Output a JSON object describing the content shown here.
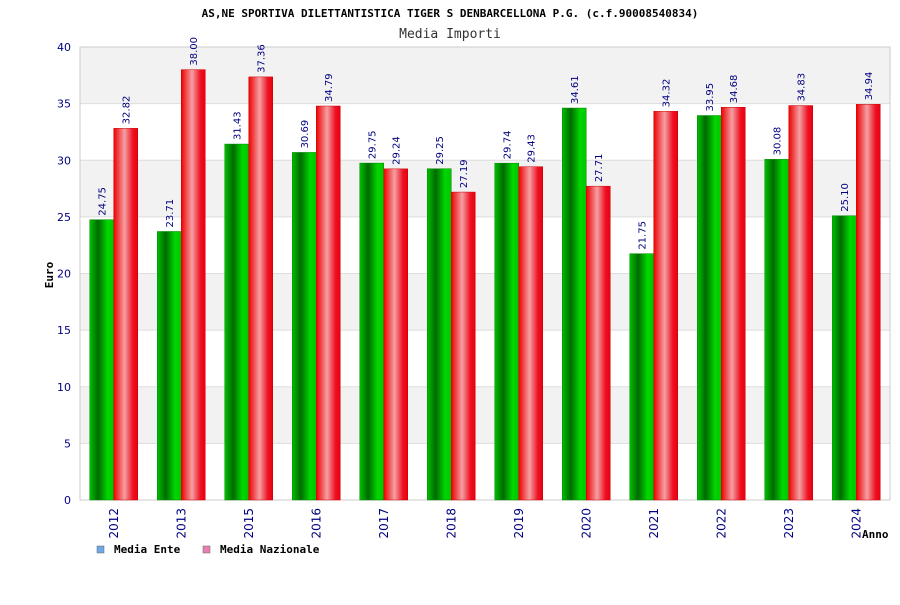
{
  "chart_data": {
    "type": "bar",
    "title": "AS,NE SPORTIVA DILETTANTISTICA TIGER S DENBARCELLONA P.G. (c.f.90008540834)",
    "subtitle": "Media Importi",
    "xlabel": "Anno",
    "ylabel": "Euro",
    "ylim": [
      0,
      40
    ],
    "yticks": [
      "0",
      "5",
      "10",
      "15",
      "20",
      "25",
      "30",
      "35",
      "40"
    ],
    "grid": true,
    "legend_position": "bottom-left",
    "categories": [
      "2012",
      "2013",
      "2015",
      "2016",
      "2017",
      "2018",
      "2019",
      "2020",
      "2021",
      "2022",
      "2023",
      "2024"
    ],
    "series": [
      {
        "name": "Media Ente",
        "legend_color": "#6fa8e8",
        "bar_color": "#00b800",
        "values": [
          24.75,
          23.71,
          31.43,
          30.69,
          29.75,
          29.25,
          29.74,
          34.61,
          21.75,
          33.95,
          30.08,
          25.1
        ],
        "labels": [
          "24.75",
          "23.71",
          "31.43",
          "30.69",
          "29.75",
          "29.25",
          "29.74",
          "34.61",
          "21.75",
          "33.95",
          "30.08",
          "25.10"
        ]
      },
      {
        "name": "Media Nazionale",
        "legend_color": "#e87fb0",
        "bar_color": "#ee1122",
        "values": [
          32.82,
          38.0,
          37.36,
          34.79,
          29.24,
          27.19,
          29.43,
          27.71,
          34.32,
          34.68,
          34.83,
          34.94
        ],
        "labels": [
          "32.82",
          "38.00",
          "37.36",
          "34.79",
          "29.24",
          "27.19",
          "29.43",
          "27.71",
          "34.32",
          "34.68",
          "34.83",
          "34.94"
        ]
      }
    ]
  }
}
